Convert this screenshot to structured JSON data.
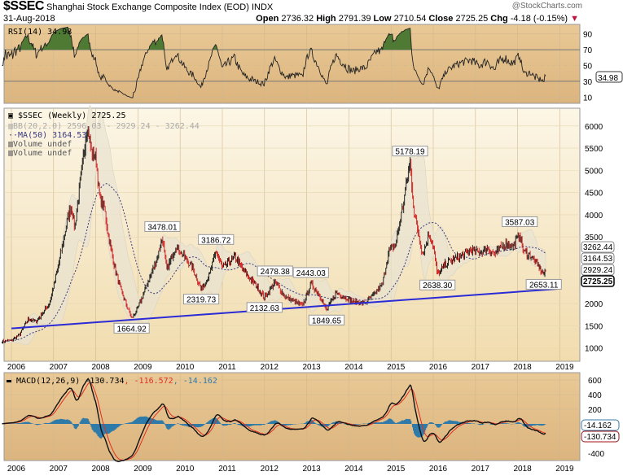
{
  "header": {
    "symbol": "$SSEC",
    "name": "Shanghai Stock Exchange Composite Index (EOD)",
    "exchange": "INDX",
    "date": "31-Aug-2018",
    "open_label": "Open",
    "open": "2736.32",
    "high_label": "High",
    "high": "2791.39",
    "low_label": "Low",
    "low": "2710.54",
    "close_label": "Close",
    "close": "2725.25",
    "chg_label": "Chg",
    "chg": "-4.18 (-0.15%)",
    "copyright": "@StockCharts.com",
    "down_color": "#c0143c"
  },
  "chart_data": [
    {
      "type": "line",
      "title": "RSI(14) 34.98",
      "yticks": [
        90,
        70,
        50,
        30,
        10
      ],
      "ylim": [
        0,
        100
      ],
      "last_value_tag": "34.98",
      "overbought": 70,
      "oversold": 30,
      "colors": {
        "line": "#222222",
        "fill": "#4f7a33",
        "bg": "#e2bb84"
      }
    },
    {
      "type": "line",
      "title": "$SSEC (Weekly) 2725.25",
      "legend": [
        "BB(20,2.0) 2596.03 - 2929.24 - 3262.44",
        "MA(50) 3164.53",
        "Volume undef",
        "Volume undef"
      ],
      "ylim": [
        700,
        6400
      ],
      "yticks": [
        6000,
        5500,
        5000,
        4500,
        4000,
        3500,
        2000,
        1500,
        1000
      ],
      "value_tags": [
        "3262.44",
        "3164.53",
        "2929.24",
        "2725.25"
      ],
      "x_ticks": [
        "2006",
        "2007",
        "2008",
        "2009",
        "2010",
        "2011",
        "2012",
        "2013",
        "2014",
        "2015",
        "2016",
        "2017",
        "2018",
        "2019"
      ],
      "price_anchors": [
        [
          2005.78,
          1150
        ],
        [
          2006.0,
          1170
        ],
        [
          2006.2,
          1300
        ],
        [
          2006.4,
          1650
        ],
        [
          2006.6,
          1600
        ],
        [
          2006.9,
          2000
        ],
        [
          2007.1,
          2800
        ],
        [
          2007.35,
          4000
        ],
        [
          2007.42,
          4200
        ],
        [
          2007.5,
          3700
        ],
        [
          2007.65,
          4900
        ],
        [
          2007.8,
          6050
        ],
        [
          2007.9,
          5400
        ],
        [
          2008.0,
          5300
        ],
        [
          2008.1,
          4300
        ],
        [
          2008.2,
          4200
        ],
        [
          2008.3,
          3500
        ],
        [
          2008.45,
          2800
        ],
        [
          2008.6,
          2300
        ],
        [
          2008.75,
          1900
        ],
        [
          2008.85,
          1664.92
        ],
        [
          2009.0,
          1900
        ],
        [
          2009.2,
          2400
        ],
        [
          2009.45,
          3000
        ],
        [
          2009.58,
          3478.01
        ],
        [
          2009.68,
          2750
        ],
        [
          2009.9,
          3300
        ],
        [
          2010.1,
          3050
        ],
        [
          2010.3,
          2800
        ],
        [
          2010.5,
          2319.73
        ],
        [
          2010.7,
          2650
        ],
        [
          2010.85,
          3186.72
        ],
        [
          2011.0,
          2800
        ],
        [
          2011.3,
          3050
        ],
        [
          2011.5,
          2750
        ],
        [
          2011.8,
          2400
        ],
        [
          2012.0,
          2132.63
        ],
        [
          2012.25,
          2478.38
        ],
        [
          2012.5,
          2150
        ],
        [
          2012.9,
          1950
        ],
        [
          2013.1,
          2443.03
        ],
        [
          2013.3,
          2200
        ],
        [
          2013.47,
          1849.65
        ],
        [
          2013.7,
          2250
        ],
        [
          2013.9,
          2150
        ],
        [
          2014.1,
          2030
        ],
        [
          2014.4,
          2020
        ],
        [
          2014.6,
          2200
        ],
        [
          2014.8,
          2450
        ],
        [
          2014.95,
          3200
        ],
        [
          2015.1,
          3300
        ],
        [
          2015.3,
          4300
        ],
        [
          2015.45,
          5178.19
        ],
        [
          2015.55,
          4000
        ],
        [
          2015.65,
          3600
        ],
        [
          2015.75,
          3100
        ],
        [
          2015.9,
          3550
        ],
        [
          2016.0,
          3300
        ],
        [
          2016.1,
          2638.3
        ],
        [
          2016.3,
          2900
        ],
        [
          2016.6,
          3050
        ],
        [
          2016.9,
          3200
        ],
        [
          2017.1,
          3150
        ],
        [
          2017.3,
          3250
        ],
        [
          2017.45,
          3100
        ],
        [
          2017.7,
          3350
        ],
        [
          2017.9,
          3300
        ],
        [
          2018.05,
          3587.03
        ],
        [
          2018.15,
          3150
        ],
        [
          2018.3,
          3100
        ],
        [
          2018.45,
          2900
        ],
        [
          2018.55,
          2750
        ],
        [
          2018.62,
          2653.11
        ],
        [
          2018.67,
          2725.25
        ]
      ],
      "annotations": [
        {
          "t": 2007.8,
          "price": 6050,
          "label": "",
          "pos": "above"
        },
        {
          "t": 2008.85,
          "price": 1664.92,
          "label": "1664.92",
          "pos": "below"
        },
        {
          "t": 2009.58,
          "price": 3478.01,
          "label": "3478.01",
          "pos": "above"
        },
        {
          "t": 2010.5,
          "price": 2319.73,
          "label": "2319.73",
          "pos": "below"
        },
        {
          "t": 2010.85,
          "price": 3186.72,
          "label": "3186.72",
          "pos": "above"
        },
        {
          "t": 2012.0,
          "price": 2132.63,
          "label": "2132.63",
          "pos": "below"
        },
        {
          "t": 2012.25,
          "price": 2478.38,
          "label": "2478.38",
          "pos": "above"
        },
        {
          "t": 2013.1,
          "price": 2443.03,
          "label": "2443.03",
          "pos": "above"
        },
        {
          "t": 2013.47,
          "price": 1849.65,
          "label": "1849.65",
          "pos": "below"
        },
        {
          "t": 2015.45,
          "price": 5178.19,
          "label": "5178.19",
          "pos": "above"
        },
        {
          "t": 2016.1,
          "price": 2638.3,
          "label": "2638.30",
          "pos": "below"
        },
        {
          "t": 2018.05,
          "price": 3587.03,
          "label": "3587.03",
          "pos": "above"
        },
        {
          "t": 2018.62,
          "price": 2653.11,
          "label": "2653.11",
          "pos": "below"
        }
      ],
      "trendline": {
        "from": [
          2006.0,
          1440
        ],
        "to": [
          2018.95,
          2330
        ],
        "color": "#2b2bd6"
      },
      "colors": {
        "up": "#111111",
        "down": "#d01818",
        "ma": "#3a3a80",
        "bb": "#d9d3c2",
        "bg": "#fbf2d8"
      }
    },
    {
      "type": "line",
      "title": "MACD(12,26,9)",
      "legend": [
        "-130.734",
        "-116.572",
        "-14.162"
      ],
      "ylim": [
        -500,
        700
      ],
      "yticks": [
        600,
        400,
        200,
        -400
      ],
      "value_tags": [
        "-14.162",
        "-130.734"
      ],
      "colors": {
        "macd": "#111111",
        "signal": "#e03020",
        "hist": "#2f7aa8",
        "bg": "#e2bb84"
      }
    }
  ]
}
